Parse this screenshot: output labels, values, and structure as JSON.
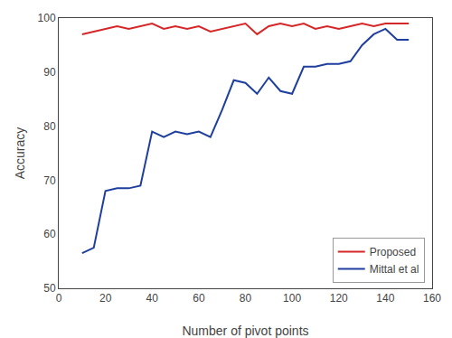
{
  "chart_data": {
    "type": "line",
    "x": [
      10,
      15,
      20,
      25,
      30,
      35,
      40,
      45,
      50,
      55,
      60,
      65,
      70,
      75,
      80,
      85,
      90,
      95,
      100,
      105,
      110,
      115,
      120,
      125,
      130,
      135,
      140,
      145,
      150
    ],
    "series": [
      {
        "name": "Proposed",
        "color": "#d62728",
        "values": [
          97,
          97.5,
          98,
          98.5,
          98,
          98.5,
          99,
          98,
          98.5,
          98,
          98.5,
          97.5,
          98,
          98.5,
          99,
          97,
          98.5,
          99,
          98.5,
          99,
          98,
          98.5,
          98,
          98.5,
          99,
          98.5,
          99,
          99,
          99
        ]
      },
      {
        "name": "Mittal et al",
        "color": "#1f3f9e",
        "values": [
          56.5,
          57.5,
          68,
          68.5,
          68.5,
          69,
          79,
          78,
          79,
          78.5,
          79,
          78,
          83,
          88.5,
          88,
          86,
          89,
          86.5,
          86,
          91,
          91,
          91.5,
          91.5,
          92,
          95,
          97,
          98,
          96,
          96
        ]
      }
    ],
    "xlabel": "Number of pivot points",
    "ylabel": "Accuracy",
    "xlim": [
      0,
      160
    ],
    "ylim": [
      50,
      100
    ],
    "xticks": [
      0,
      20,
      40,
      60,
      80,
      100,
      120,
      140,
      160
    ],
    "yticks": [
      50,
      60,
      70,
      80,
      90,
      100
    ],
    "legend": "lower right",
    "grid": false
  }
}
